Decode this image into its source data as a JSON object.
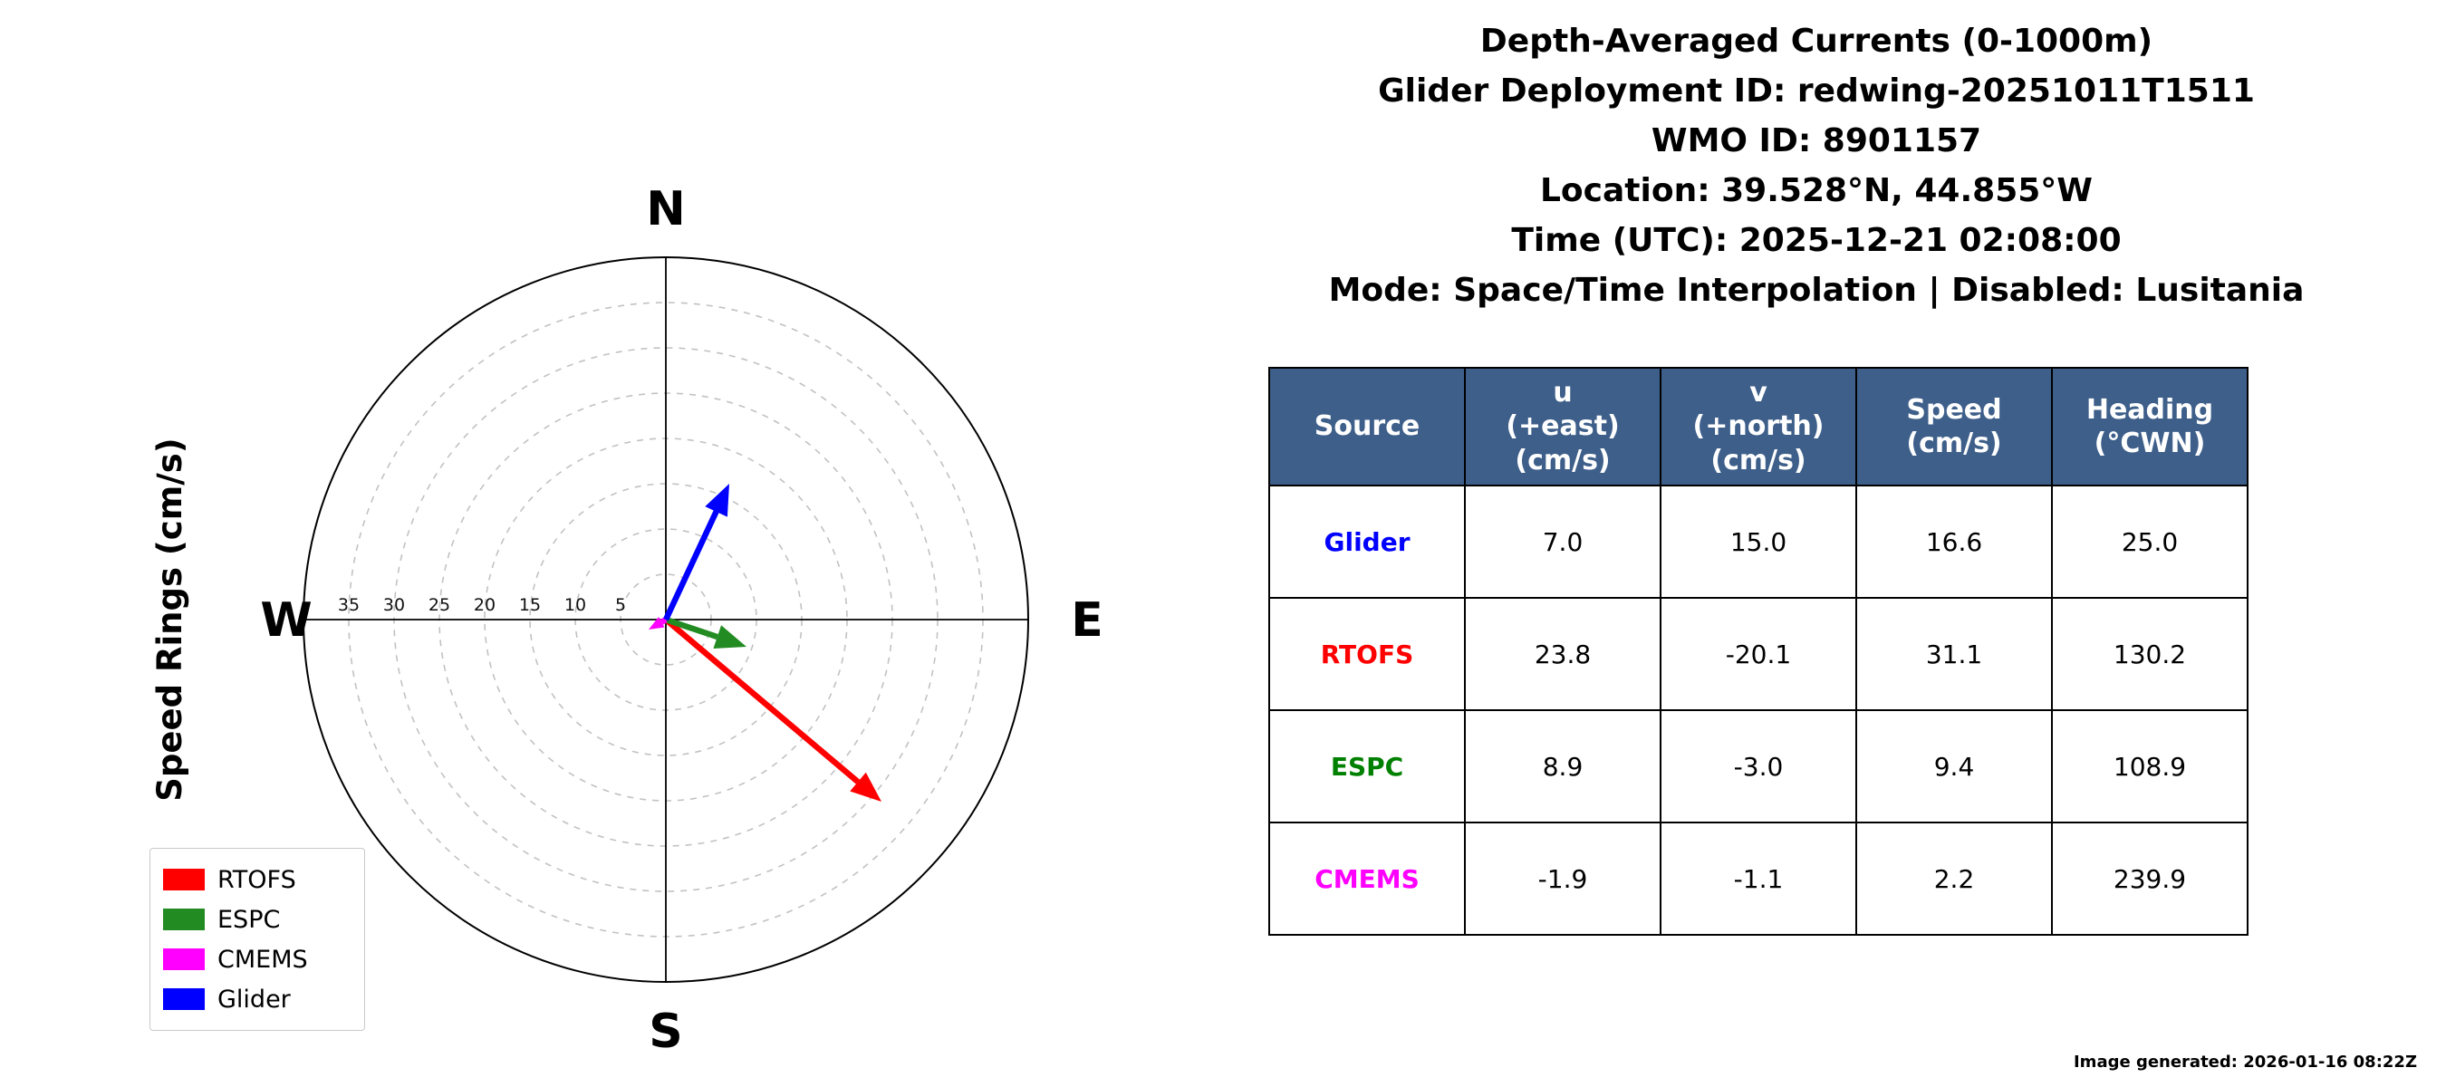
{
  "header": {
    "lines": [
      "Depth-Averaged Currents (0-1000m)",
      "Glider Deployment ID: redwing-20251011T1511",
      "WMO ID: 8901157",
      "Location: 39.528°N, 44.855°W",
      "Time (UTC): 2025-12-21 02:08:00",
      "Mode: Space/Time Interpolation | Disabled: Lusitania"
    ]
  },
  "chart_data": {
    "type": "polar-quiver",
    "title": "Depth-Averaged Currents (0-1000m)",
    "axis_label": "Speed Rings (cm/s)",
    "compass_labels": [
      "N",
      "E",
      "S",
      "W"
    ],
    "ring_values": [
      5,
      10,
      15,
      20,
      25,
      30,
      35
    ],
    "max_radius_cms": 40,
    "units": "cm/s",
    "series": [
      {
        "name": "RTOFS",
        "color": "#ff0000",
        "u": 23.8,
        "v": -20.1,
        "speed": 31.1,
        "heading_cwn": 130.2
      },
      {
        "name": "ESPC",
        "color": "#228b22",
        "u": 8.9,
        "v": -3.0,
        "speed": 9.4,
        "heading_cwn": 108.9
      },
      {
        "name": "CMEMS",
        "color": "#ff00ff",
        "u": -1.9,
        "v": -1.1,
        "speed": 2.2,
        "heading_cwn": 239.9
      },
      {
        "name": "Glider",
        "color": "#0000ff",
        "u": 7.0,
        "v": 15.0,
        "speed": 16.6,
        "heading_cwn": 25.0
      }
    ],
    "legend_position": "lower-left",
    "grid": "dashed-rings"
  },
  "table": {
    "headers": [
      "Source",
      "u\n(+east)\n(cm/s)",
      "v\n(+north)\n(cm/s)",
      "Speed\n(cm/s)",
      "Heading\n(°CWN)"
    ],
    "rows": [
      {
        "source": "Glider",
        "color": "#0000ff",
        "u": "7.0",
        "v": "15.0",
        "speed": "16.6",
        "heading": "25.0"
      },
      {
        "source": "RTOFS",
        "color": "#ff0000",
        "u": "23.8",
        "v": "-20.1",
        "speed": "31.1",
        "heading": "130.2"
      },
      {
        "source": "ESPC",
        "color": "#008000",
        "u": "8.9",
        "v": "-3.0",
        "speed": "9.4",
        "heading": "108.9"
      },
      {
        "source": "CMEMS",
        "color": "#ff00ff",
        "u": "-1.9",
        "v": "-1.1",
        "speed": "2.2",
        "heading": "239.9"
      }
    ]
  },
  "footer": {
    "generated": "Image generated: 2026-01-16 08:22Z"
  }
}
